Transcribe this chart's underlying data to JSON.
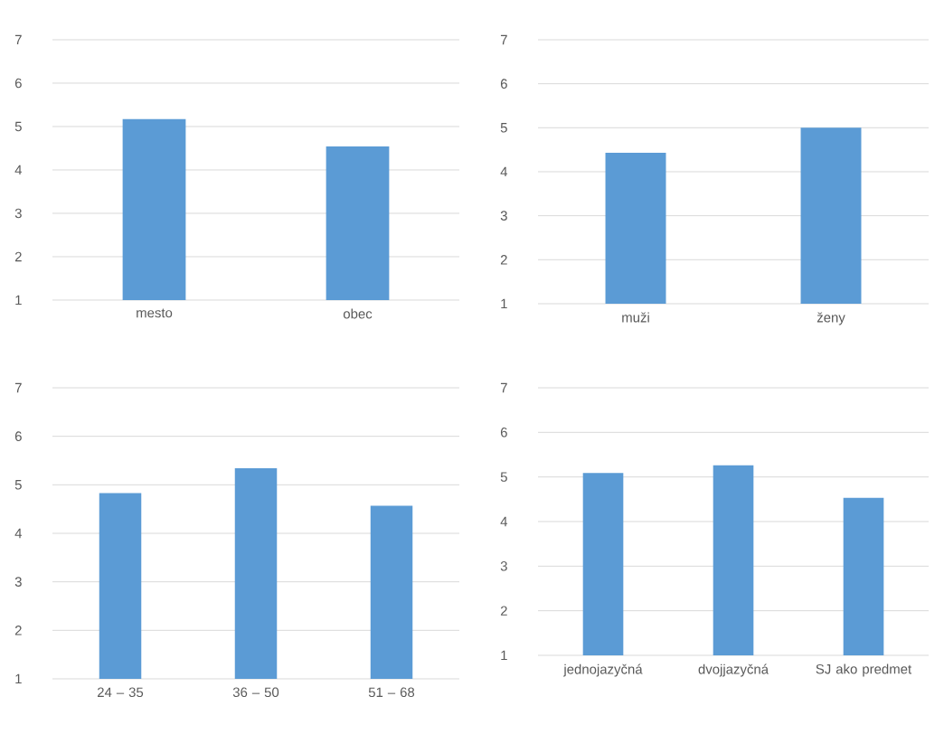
{
  "chart_data": [
    {
      "type": "bar",
      "categories": [
        "mesto",
        "obec"
      ],
      "values": [
        5.17,
        4.54
      ],
      "color": "#5b9bd5",
      "ylim": [
        1,
        7
      ],
      "yticks": [
        1,
        2,
        3,
        4,
        5,
        6,
        7
      ],
      "grid": "y"
    },
    {
      "type": "bar",
      "categories": [
        "muži",
        "ženy"
      ],
      "values": [
        4.43,
        5.0
      ],
      "color": "#5b9bd5",
      "ylim": [
        1,
        7
      ],
      "yticks": [
        1,
        2,
        3,
        4,
        5,
        6,
        7
      ],
      "grid": "y"
    },
    {
      "type": "bar",
      "categories": [
        "24 – 35",
        "36 – 50",
        "51 – 68"
      ],
      "values": [
        4.83,
        5.34,
        4.57
      ],
      "color": "#5b9bd5",
      "ylim": [
        1,
        7
      ],
      "yticks": [
        1,
        2,
        3,
        4,
        5,
        6,
        7
      ],
      "grid": "y"
    },
    {
      "type": "bar",
      "categories": [
        "jednojazyčná",
        "dvojjazyčná",
        "SJ ako predmet"
      ],
      "values": [
        5.09,
        5.26,
        4.53
      ],
      "color": "#5b9bd5",
      "ylim": [
        1,
        7
      ],
      "yticks": [
        1,
        2,
        3,
        4,
        5,
        6,
        7
      ],
      "grid": "y"
    }
  ]
}
